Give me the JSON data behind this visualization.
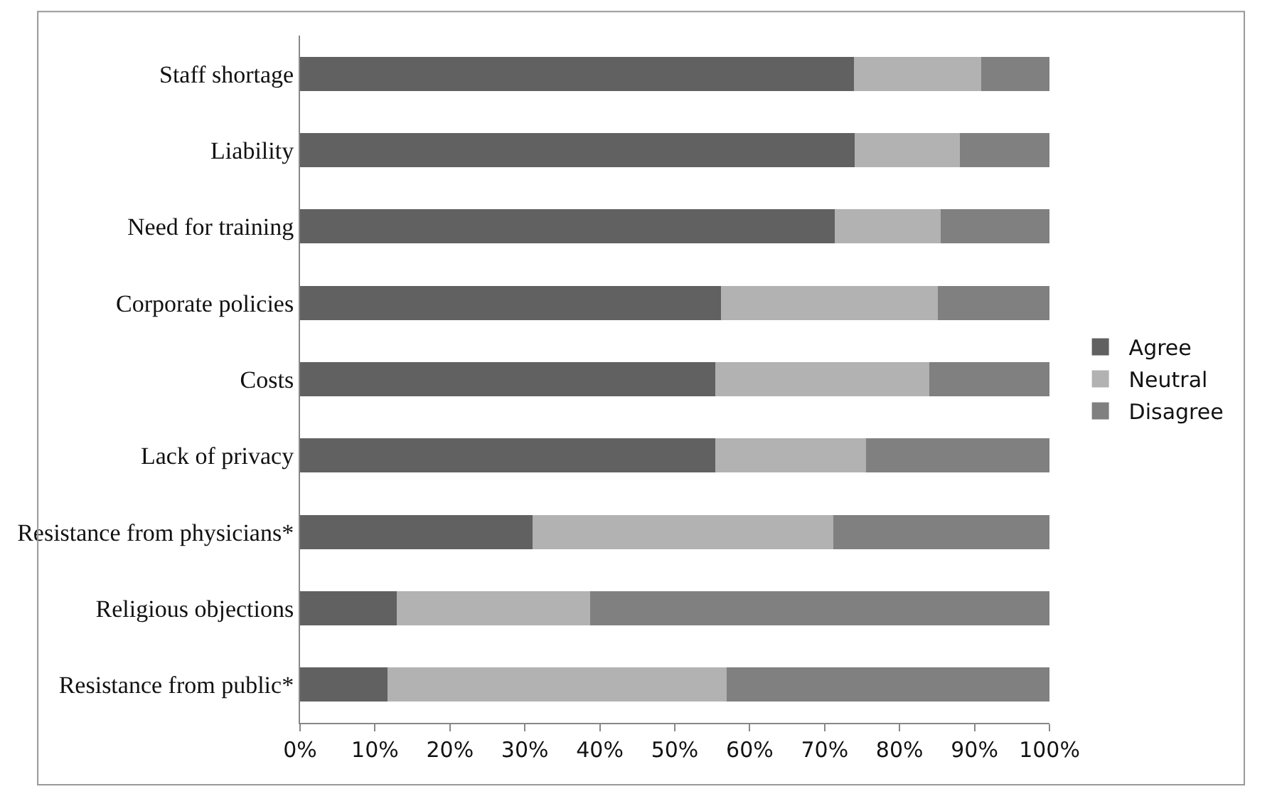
{
  "chart_data": {
    "type": "bar",
    "orientation": "horizontal",
    "stacked": true,
    "categories": [
      "Staff shortage",
      "Liability",
      "Need for training",
      "Corporate policies",
      "Costs",
      "Lack of privacy",
      "Resistance from physicians*",
      "Religious objections",
      "Resistance from public*"
    ],
    "series": [
      {
        "name": "Agree",
        "color": "#616161",
        "values": [
          73.9,
          74.0,
          71.3,
          56.2,
          55.4,
          55.4,
          31.0,
          12.9,
          11.7
        ]
      },
      {
        "name": "Neutral",
        "color": "#b2b2b2",
        "values": [
          17.0,
          14.0,
          14.2,
          28.9,
          28.6,
          20.1,
          40.2,
          25.8,
          45.2
        ]
      },
      {
        "name": "Disagree",
        "color": "#808080",
        "values": [
          9.1,
          12.0,
          14.5,
          14.9,
          16.0,
          24.5,
          28.8,
          61.3,
          43.1
        ]
      }
    ],
    "xlim": [
      0,
      100
    ],
    "xticks": [
      {
        "value": 0,
        "label": "0%"
      },
      {
        "value": 10,
        "label": "10%"
      },
      {
        "value": 20,
        "label": "20%"
      },
      {
        "value": 30,
        "label": "30%"
      },
      {
        "value": 40,
        "label": "40%"
      },
      {
        "value": 50,
        "label": "50%"
      },
      {
        "value": 60,
        "label": "60%"
      },
      {
        "value": 70,
        "label": "70%"
      },
      {
        "value": 80,
        "label": "80%"
      },
      {
        "value": 90,
        "label": "90%"
      },
      {
        "value": 100,
        "label": "100%"
      }
    ],
    "legend": "right"
  }
}
